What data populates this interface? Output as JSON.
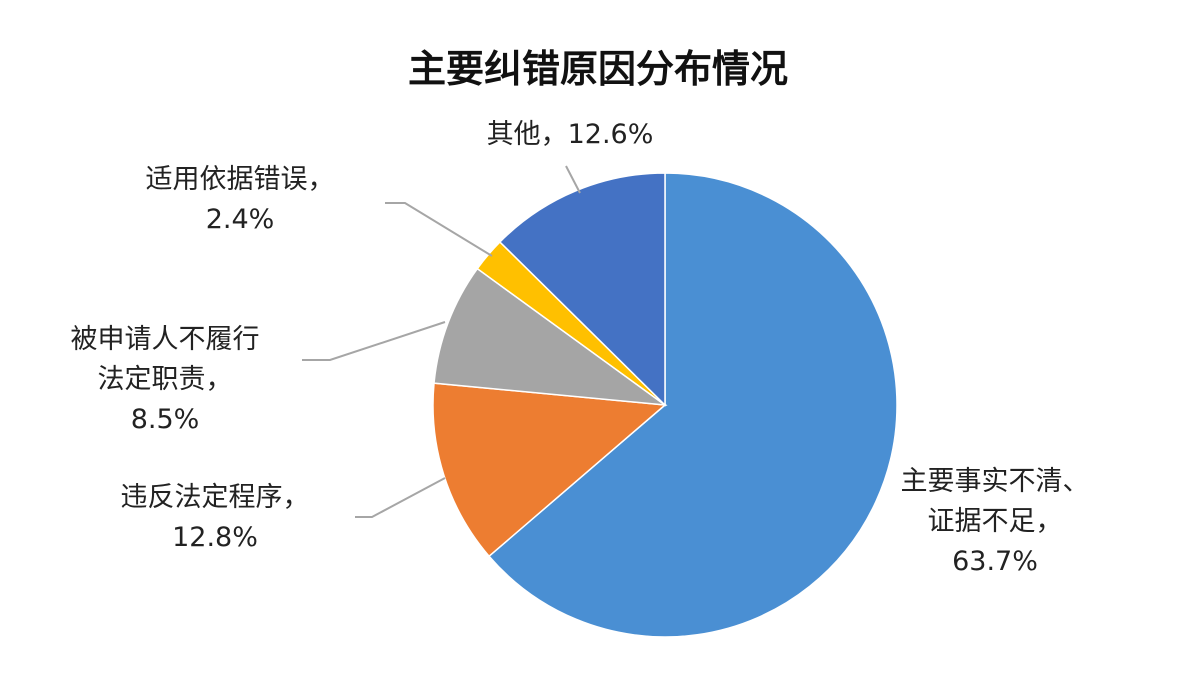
{
  "chart_data": {
    "type": "pie",
    "title": "主要纠错原因分布情况",
    "categories": [
      "主要事实不清、证据不足，",
      "违反法定程序，",
      "被申请人不履行法定职责，",
      "适用依据错误，",
      "其他，"
    ],
    "values": [
      63.7,
      12.8,
      8.5,
      2.4,
      12.6
    ],
    "value_labels": [
      "63.7%",
      "12.8%",
      "8.5%",
      "2.4%",
      "12.6%"
    ],
    "colors": [
      "#4a8fd3",
      "#ed7d31",
      "#a5a5a5",
      "#ffc000",
      "#4472c4"
    ]
  }
}
